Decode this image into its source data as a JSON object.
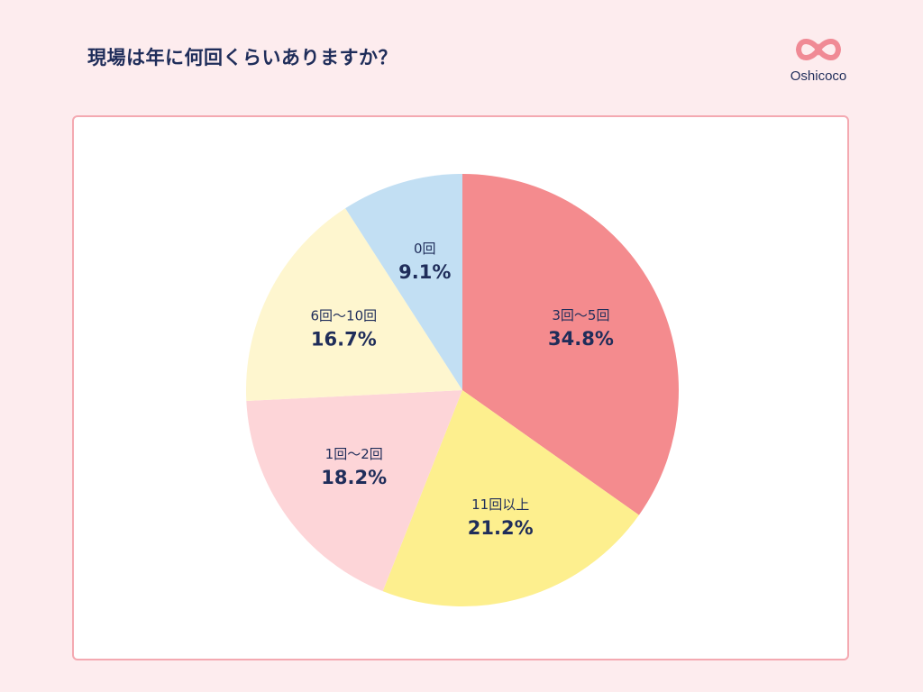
{
  "page": {
    "title": "現場は年に何回くらいありますか？",
    "brand": "Oshicoco"
  },
  "colors": {
    "background": "#fdecee",
    "card_border": "#f4a9b1",
    "text": "#1f2d5a",
    "logo": "#f08a95"
  },
  "chart_data": {
    "type": "pie",
    "title": "現場は年に何回くらいありますか？",
    "start": "12 o'clock",
    "direction": "clockwise",
    "legend": "none",
    "slices": [
      {
        "label": "3回〜5回",
        "value": 34.8,
        "display": "34.8%",
        "color": "#f48b8e"
      },
      {
        "label": "11回以上",
        "value": 21.2,
        "display": "21.2%",
        "color": "#fdef8e"
      },
      {
        "label": "1回〜2回",
        "value": 18.2,
        "display": "18.2%",
        "color": "#fdd5d8"
      },
      {
        "label": "6回〜10回",
        "value": 16.7,
        "display": "16.7%",
        "color": "#fef6cf"
      },
      {
        "label": "0回",
        "value": 9.1,
        "display": "9.1%",
        "color": "#c2dff3"
      }
    ]
  }
}
